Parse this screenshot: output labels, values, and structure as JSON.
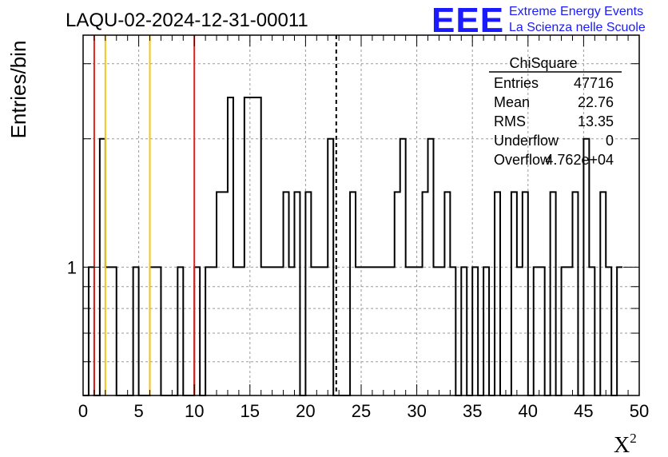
{
  "header": {
    "run_title": "LAQU-02-2024-12-31-00011",
    "logo_text": "EEE",
    "org_line1": "Extreme Energy Events",
    "org_line2": "La Scienza nelle Scuole"
  },
  "colors": {
    "logo": "#1a1aff",
    "histogram": "#000000",
    "red_line": "#e8201a",
    "yellow_line": "#f5c518",
    "grid": "#9a9a9a"
  },
  "stats": {
    "title": "ChiSquare",
    "rows": [
      {
        "label": "Entries",
        "value": "47716"
      },
      {
        "label": "Mean",
        "value": "22.76"
      },
      {
        "label": "RMS",
        "value": "13.35"
      },
      {
        "label": "Underflow",
        "value": "0"
      },
      {
        "label": "Overflow",
        "value": "4.762e+04"
      }
    ]
  },
  "chart_data": {
    "type": "bar",
    "style": "step-histogram",
    "ylabel": "Entries/bin",
    "xlabel": "X",
    "xlabel_superscript": "2",
    "xlim": [
      0,
      50
    ],
    "ylim": [
      0.5,
      3.5
    ],
    "y_log": true,
    "grid": true,
    "x_ticks": [
      "0",
      "5",
      "10",
      "15",
      "20",
      "25",
      "30",
      "35",
      "40",
      "45",
      "50"
    ],
    "y_ticks": [
      "1"
    ],
    "bin_width": 0.5,
    "values": [
      0,
      1,
      0,
      2,
      1,
      1,
      0,
      0,
      0,
      1,
      0,
      0,
      1,
      1,
      0,
      0,
      0,
      1,
      0,
      0,
      1,
      0,
      1,
      1,
      1.5,
      1.5,
      2.5,
      1,
      1,
      2.5,
      2.5,
      2.5,
      1,
      1,
      1,
      1,
      1.5,
      1,
      1.5,
      0,
      1.5,
      1,
      1,
      1,
      2,
      0,
      0,
      0,
      1.5,
      1,
      1,
      1,
      1,
      1,
      1,
      1,
      1.5,
      2,
      1,
      1,
      1,
      1.5,
      2,
      1,
      1,
      1.5,
      1,
      0,
      1,
      0,
      1,
      0,
      1,
      0,
      1.5,
      0,
      0,
      1.5,
      1,
      1.5,
      0,
      1,
      1,
      0,
      1.5,
      0,
      1,
      1,
      1.5,
      0,
      2,
      1,
      0,
      1.5,
      1,
      0,
      1
    ],
    "vertical_lines": [
      {
        "x": 1.0,
        "color_key": "red_line",
        "style": "solid"
      },
      {
        "x": 2.0,
        "color_key": "yellow_line",
        "style": "solid"
      },
      {
        "x": 6.0,
        "color_key": "yellow_line",
        "style": "solid"
      },
      {
        "x": 10.0,
        "color_key": "red_line",
        "style": "solid"
      },
      {
        "x": 22.76,
        "color_key": "histogram",
        "style": "dashed"
      }
    ]
  }
}
